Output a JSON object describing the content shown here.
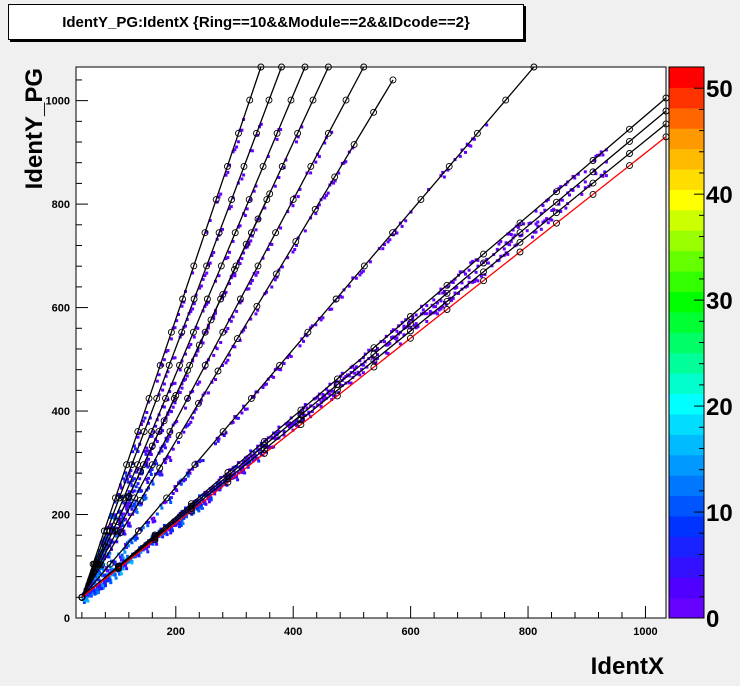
{
  "title": "IdentY_PG:IdentX {Ring==10&&Module==2&&IDcode==2}",
  "chart_data": {
    "type": "scatter",
    "title": "IdentY_PG:IdentX {Ring==10&&Module==2&&IDcode==2}",
    "xlabel": "IdentX",
    "ylabel": "IdentY_PG",
    "xlim": [
      30,
      1035
    ],
    "ylim": [
      0,
      1065
    ],
    "xticks": [
      200,
      400,
      600,
      800,
      1000
    ],
    "yticks": [
      0,
      200,
      400,
      600,
      800,
      1000
    ],
    "color_scale": {
      "min": 0,
      "max": 52,
      "ticks": [
        0,
        10,
        20,
        30,
        40,
        50
      ],
      "colors": [
        "#6600ff",
        "#5000ff",
        "#3311ff",
        "#1a22ff",
        "#0033ff",
        "#0055ff",
        "#0077ff",
        "#0099ff",
        "#00bbff",
        "#00ddff",
        "#00ffff",
        "#00ffcc",
        "#00ff99",
        "#00ff66",
        "#00ff33",
        "#00ff00",
        "#33ff00",
        "#66ff00",
        "#99ff00",
        "#ccff00",
        "#ffff00",
        "#ffdd00",
        "#ffbb00",
        "#ff9900",
        "#ff6600",
        "#ff3300",
        "#ff0000"
      ]
    },
    "series": [
      {
        "name": "",
        "color": "#000000",
        "x": [
          40,
          360
        ],
        "y": [
          40,
          820
        ]
      },
      {
        "name": "",
        "color": "#000000",
        "x": [
          40,
          345
        ],
        "y": [
          40,
          1065
        ]
      },
      {
        "name": "",
        "color": "#000000",
        "x": [
          40,
          380
        ],
        "y": [
          40,
          1065
        ]
      },
      {
        "name": "",
        "color": "#000000",
        "x": [
          40,
          420
        ],
        "y": [
          40,
          1065
        ]
      },
      {
        "name": "",
        "color": "#000000",
        "x": [
          40,
          460
        ],
        "y": [
          40,
          1065
        ]
      },
      {
        "name": "",
        "color": "#000000",
        "x": [
          40,
          520
        ],
        "y": [
          40,
          1065
        ]
      },
      {
        "name": "",
        "color": "#000000",
        "x": [
          40,
          570
        ],
        "y": [
          40,
          1040
        ]
      },
      {
        "name": "",
        "color": "#000000",
        "x": [
          40,
          810
        ],
        "y": [
          40,
          1065
        ]
      },
      {
        "name": "",
        "color": "#000000",
        "x": [
          40,
          1035
        ],
        "y": [
          40,
          1005
        ]
      },
      {
        "name": "",
        "color": "#000000",
        "x": [
          40,
          1035
        ],
        "y": [
          40,
          980
        ]
      },
      {
        "name": "",
        "color": "#000000",
        "x": [
          40,
          1035
        ],
        "y": [
          40,
          955
        ]
      },
      {
        "name": "",
        "color": "#ff0000",
        "x": [
          40,
          1035
        ],
        "y": [
          40,
          930
        ]
      }
    ]
  }
}
